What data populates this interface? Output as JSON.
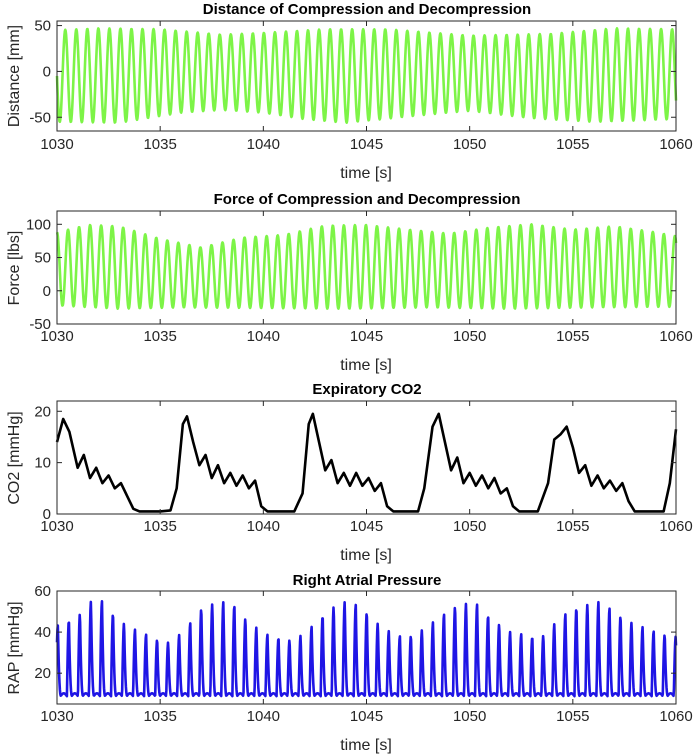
{
  "figure": {
    "xrange": [
      1030,
      1060
    ]
  },
  "chart_data": [
    {
      "type": "line",
      "name": "distance",
      "title": "Distance of Compression and Decompression",
      "xlabel": "time [s]",
      "ylabel": "Distance [mm]",
      "xlim": [
        1030,
        1060
      ],
      "ylim": [
        -65,
        55
      ],
      "xticks": [
        1030,
        1035,
        1040,
        1045,
        1050,
        1055,
        1060
      ],
      "yticks": [
        -50,
        0,
        50
      ],
      "color": "#7df447",
      "signal": {
        "kind": "oscillation",
        "rate_hz": 1.87,
        "phase": 0.25,
        "max_key": [
          [
            1030,
            45
          ],
          [
            1032,
            47
          ],
          [
            1035,
            46
          ],
          [
            1038,
            40
          ],
          [
            1040,
            42
          ],
          [
            1043,
            46
          ],
          [
            1046,
            46
          ],
          [
            1050,
            39
          ],
          [
            1054,
            41
          ],
          [
            1057,
            47
          ],
          [
            1060,
            46
          ]
        ],
        "min_key": [
          [
            1030,
            -55
          ],
          [
            1033,
            -56
          ],
          [
            1036,
            -45
          ],
          [
            1038,
            -42
          ],
          [
            1040,
            -45
          ],
          [
            1042,
            -52
          ],
          [
            1044,
            -56
          ],
          [
            1048,
            -47
          ],
          [
            1050,
            -43
          ],
          [
            1053,
            -51
          ],
          [
            1056,
            -55
          ],
          [
            1060,
            -52
          ]
        ]
      }
    },
    {
      "type": "line",
      "name": "force",
      "title": "Force of Compression and Decompression",
      "xlabel": "time [s]",
      "ylabel": "Force [lbs]",
      "xlim": [
        1030,
        1060
      ],
      "ylim": [
        -50,
        120
      ],
      "xticks": [
        1030,
        1035,
        1040,
        1045,
        1050,
        1055,
        1060
      ],
      "yticks": [
        -50,
        0,
        50,
        100
      ],
      "color": "#7df447",
      "signal": {
        "kind": "oscillation",
        "rate_hz": 1.87,
        "phase": 0.0,
        "max_key": [
          [
            1030,
            88
          ],
          [
            1031.5,
            99
          ],
          [
            1033,
            97
          ],
          [
            1035,
            78
          ],
          [
            1037,
            65
          ],
          [
            1039,
            80
          ],
          [
            1041,
            84
          ],
          [
            1043,
            98
          ],
          [
            1045,
            99
          ],
          [
            1047,
            92
          ],
          [
            1049,
            86
          ],
          [
            1051,
            95
          ],
          [
            1053,
            100
          ],
          [
            1055,
            92
          ],
          [
            1057,
            97
          ],
          [
            1059,
            88
          ],
          [
            1060,
            82
          ]
        ],
        "min_key": [
          [
            1030,
            -22
          ],
          [
            1033,
            -27
          ],
          [
            1036,
            -25
          ],
          [
            1040,
            -26
          ],
          [
            1044,
            -27
          ],
          [
            1048,
            -25
          ],
          [
            1052,
            -27
          ],
          [
            1056,
            -25
          ],
          [
            1060,
            -24
          ]
        ]
      }
    },
    {
      "type": "line",
      "name": "co2",
      "title": "Expiratory CO2",
      "xlabel": "time [s]",
      "ylabel": "CO2 [mmHg]",
      "xlim": [
        1030,
        1060
      ],
      "ylim": [
        0,
        22
      ],
      "xticks": [
        1030,
        1035,
        1040,
        1045,
        1050,
        1055,
        1060
      ],
      "yticks": [
        0,
        10,
        20
      ],
      "color": "#000000",
      "points": [
        [
          1030,
          14
        ],
        [
          1030.3,
          18.5
        ],
        [
          1030.6,
          16
        ],
        [
          1031,
          9
        ],
        [
          1031.3,
          11.5
        ],
        [
          1031.6,
          7
        ],
        [
          1031.9,
          9
        ],
        [
          1032.2,
          6
        ],
        [
          1032.5,
          7.5
        ],
        [
          1032.8,
          5
        ],
        [
          1033.1,
          6
        ],
        [
          1033.4,
          3.5
        ],
        [
          1033.7,
          1
        ],
        [
          1034,
          0.5
        ],
        [
          1035,
          0.5
        ],
        [
          1035.5,
          0.7
        ],
        [
          1035.8,
          5
        ],
        [
          1036.1,
          17.5
        ],
        [
          1036.3,
          19
        ],
        [
          1036.6,
          14
        ],
        [
          1036.9,
          9.5
        ],
        [
          1037.2,
          11.5
        ],
        [
          1037.5,
          7
        ],
        [
          1037.8,
          9.5
        ],
        [
          1038.1,
          6
        ],
        [
          1038.4,
          8
        ],
        [
          1038.7,
          5.5
        ],
        [
          1039,
          7.5
        ],
        [
          1039.3,
          5
        ],
        [
          1039.6,
          6.5
        ],
        [
          1039.9,
          1.5
        ],
        [
          1040.2,
          0.5
        ],
        [
          1041.5,
          0.5
        ],
        [
          1041.9,
          4
        ],
        [
          1042.2,
          17.5
        ],
        [
          1042.4,
          19.5
        ],
        [
          1042.7,
          14
        ],
        [
          1043,
          8.5
        ],
        [
          1043.3,
          10.5
        ],
        [
          1043.6,
          6
        ],
        [
          1043.9,
          8
        ],
        [
          1044.2,
          5.5
        ],
        [
          1044.5,
          8
        ],
        [
          1044.8,
          5.5
        ],
        [
          1045.1,
          7
        ],
        [
          1045.4,
          4.5
        ],
        [
          1045.7,
          6
        ],
        [
          1046,
          1.5
        ],
        [
          1046.3,
          0.5
        ],
        [
          1047.5,
          0.5
        ],
        [
          1047.8,
          5
        ],
        [
          1048.2,
          17
        ],
        [
          1048.5,
          19.5
        ],
        [
          1048.8,
          14
        ],
        [
          1049.1,
          8.5
        ],
        [
          1049.4,
          11
        ],
        [
          1049.7,
          6
        ],
        [
          1050,
          8
        ],
        [
          1050.3,
          5.5
        ],
        [
          1050.6,
          7.5
        ],
        [
          1050.9,
          5
        ],
        [
          1051.2,
          7
        ],
        [
          1051.5,
          4
        ],
        [
          1051.8,
          5
        ],
        [
          1052.1,
          1.5
        ],
        [
          1052.4,
          0.5
        ],
        [
          1053.3,
          0.5
        ],
        [
          1053.8,
          6
        ],
        [
          1054.1,
          14.5
        ],
        [
          1054.4,
          15.5
        ],
        [
          1054.7,
          17
        ],
        [
          1055,
          13
        ],
        [
          1055.3,
          8
        ],
        [
          1055.6,
          9.5
        ],
        [
          1055.9,
          5.5
        ],
        [
          1056.2,
          7.5
        ],
        [
          1056.5,
          5
        ],
        [
          1056.8,
          6.5
        ],
        [
          1057.1,
          4.5
        ],
        [
          1057.4,
          6
        ],
        [
          1057.7,
          2.5
        ],
        [
          1058,
          0.5
        ],
        [
          1059.4,
          0.5
        ],
        [
          1059.7,
          6
        ],
        [
          1060,
          16.5
        ]
      ]
    },
    {
      "type": "line",
      "name": "rap",
      "title": "Right Atrial Pressure",
      "xlabel": "time [s]",
      "ylabel": "RAP [mmHg]",
      "xlim": [
        1030,
        1060
      ],
      "ylim": [
        5,
        60
      ],
      "xticks": [
        1030,
        1035,
        1040,
        1045,
        1050,
        1055,
        1060
      ],
      "yticks": [
        20,
        40,
        60
      ],
      "color": "#1f15e5",
      "signal": {
        "kind": "pulse",
        "rate_hz": 1.87,
        "phase": 0.1,
        "peak_key": [
          [
            1030,
            43
          ],
          [
            1031,
            48
          ],
          [
            1031.6,
            55
          ],
          [
            1032.2,
            55
          ],
          [
            1033,
            46
          ],
          [
            1034,
            40
          ],
          [
            1035,
            36
          ],
          [
            1035.5,
            35
          ],
          [
            1036.3,
            42
          ],
          [
            1037,
            52
          ],
          [
            1037.8,
            55
          ],
          [
            1038.5,
            54
          ],
          [
            1039.3,
            45
          ],
          [
            1040.3,
            38
          ],
          [
            1041.5,
            36
          ],
          [
            1042.4,
            43
          ],
          [
            1043.2,
            52
          ],
          [
            1044,
            55
          ],
          [
            1044.8,
            52
          ],
          [
            1045.8,
            42
          ],
          [
            1046.8,
            37
          ],
          [
            1047.5,
            40
          ],
          [
            1048.4,
            46
          ],
          [
            1049.3,
            53
          ],
          [
            1050.2,
            55
          ],
          [
            1050.9,
            48
          ],
          [
            1052,
            40
          ],
          [
            1053.4,
            37
          ],
          [
            1054.4,
            47
          ],
          [
            1055.3,
            53
          ],
          [
            1056.2,
            55
          ],
          [
            1057,
            50
          ],
          [
            1058,
            44
          ],
          [
            1059,
            40
          ],
          [
            1060,
            38
          ]
        ],
        "base": 9
      }
    }
  ]
}
